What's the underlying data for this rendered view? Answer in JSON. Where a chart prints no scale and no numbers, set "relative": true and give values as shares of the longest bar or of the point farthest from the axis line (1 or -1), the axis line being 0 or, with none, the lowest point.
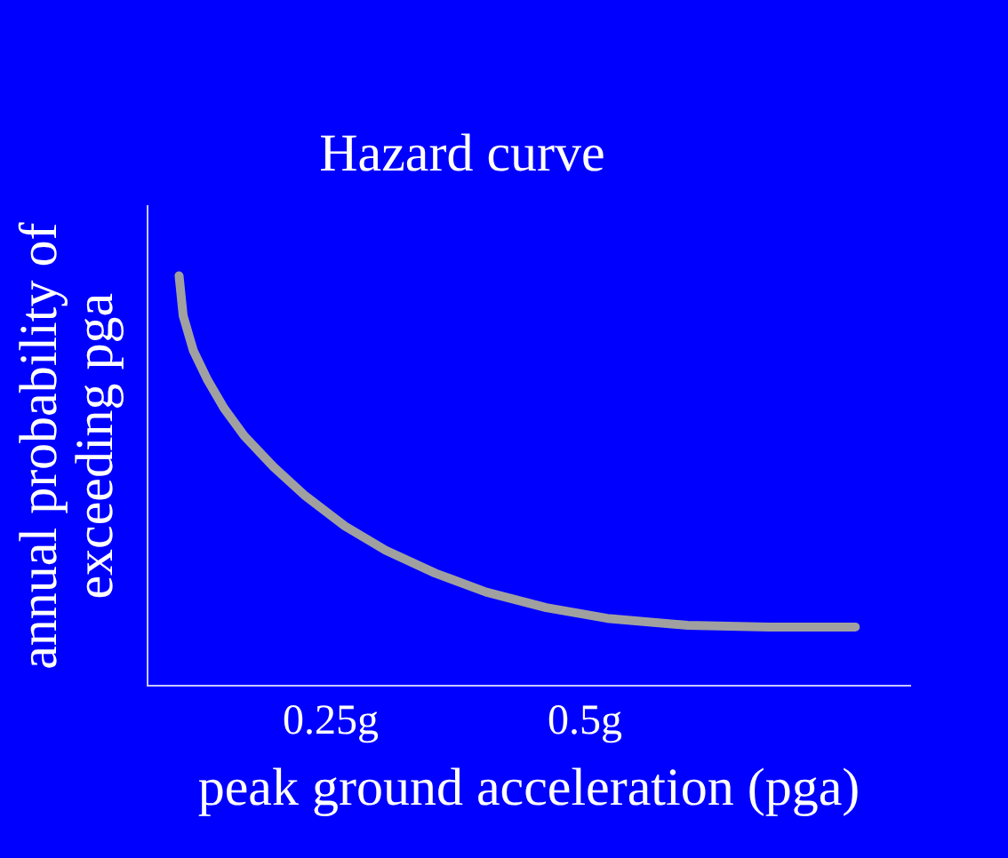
{
  "chart_data": {
    "type": "line",
    "title": "Hazard curve",
    "xlabel": "peak ground acceleration (pga)",
    "ylabel": "annual probability of\nexceeding pga",
    "relative": true,
    "xlim": [
      0.07,
      0.82
    ],
    "xticks": [
      {
        "value": 0.25,
        "label": "0.25g"
      },
      {
        "value": 0.5,
        "label": "0.5g"
      }
    ],
    "grid": false,
    "legend": false,
    "marker": "none",
    "line_style": "solid",
    "series": [
      {
        "color": "#a0a0a0",
        "x": [
          0.101,
          0.105,
          0.115,
          0.129,
          0.145,
          0.165,
          0.194,
          0.224,
          0.264,
          0.304,
          0.353,
          0.403,
          0.462,
          0.522,
          0.601,
          0.681,
          0.766
        ],
        "values": [
          1,
          0.903,
          0.818,
          0.746,
          0.678,
          0.61,
          0.534,
          0.466,
          0.39,
          0.331,
          0.275,
          0.229,
          0.191,
          0.165,
          0.148,
          0.144,
          0.144
        ]
      }
    ]
  }
}
